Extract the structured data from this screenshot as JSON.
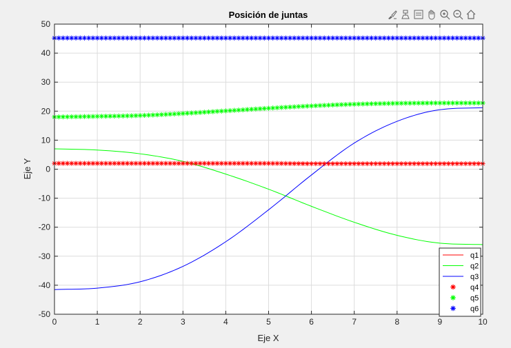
{
  "toolbar": {
    "icons": [
      "brush-icon",
      "data-tips-icon",
      "restore-view-icon",
      "pan-icon",
      "zoom-in-icon",
      "zoom-out-icon",
      "home-icon"
    ]
  },
  "colors": {
    "q1": "#ff0000",
    "q2": "#00ff00",
    "q3": "#0000ff",
    "q4": "#ff0000",
    "q5": "#00ff00",
    "q6": "#0000ff",
    "axes_bg": "#ffffff",
    "figure_bg": "#f0f0f0",
    "grid": "#dcdcdc"
  },
  "chart_data": {
    "type": "line",
    "title": "Posición de juntas",
    "xlabel": "Eje X",
    "ylabel": "Eje Y",
    "xlim": [
      0,
      10
    ],
    "ylim": [
      -50,
      50
    ],
    "xticks": [
      0,
      1,
      2,
      3,
      4,
      5,
      6,
      7,
      8,
      9,
      10
    ],
    "yticks": [
      -50,
      -40,
      -30,
      -20,
      -10,
      0,
      10,
      20,
      30,
      40,
      50
    ],
    "grid": true,
    "legend_position": "bottom-right",
    "series": [
      {
        "name": "q1",
        "style": "line",
        "color": "#ff0000",
        "x": [
          0,
          1,
          2,
          3,
          4,
          5,
          6,
          7,
          8,
          9,
          10
        ],
        "y": [
          2.0,
          2.0,
          2.0,
          2.0,
          2.0,
          2.0,
          2.0,
          2.0,
          2.0,
          2.0,
          2.0
        ]
      },
      {
        "name": "q2",
        "style": "line",
        "color": "#00ff00",
        "x": [
          0,
          1,
          2,
          3,
          4,
          5,
          6,
          7,
          8,
          9,
          10
        ],
        "y": [
          7.0,
          6.6,
          5.3,
          2.7,
          -1.7,
          -6.9,
          -12.8,
          -18.3,
          -22.8,
          -25.5,
          -26.0
        ]
      },
      {
        "name": "q3",
        "style": "line",
        "color": "#0000ff",
        "x": [
          0,
          1,
          2,
          3,
          4,
          5,
          6,
          7,
          8,
          9,
          10
        ],
        "y": [
          -41.5,
          -41.0,
          -38.8,
          -33.5,
          -25.0,
          -14.0,
          -2.0,
          9.0,
          16.5,
          20.5,
          21.2
        ]
      },
      {
        "name": "q4",
        "style": "marker",
        "color": "#ff0000",
        "x": [
          0,
          1,
          2,
          3,
          4,
          5,
          6,
          7,
          8,
          9,
          10
        ],
        "y": [
          2.0,
          2.0,
          2.0,
          2.0,
          2.0,
          2.0,
          1.9,
          1.9,
          1.9,
          1.9,
          1.9
        ]
      },
      {
        "name": "q5",
        "style": "marker",
        "color": "#00ff00",
        "x": [
          0,
          1,
          2,
          3,
          4,
          5,
          6,
          7,
          8,
          9,
          10
        ],
        "y": [
          18.0,
          18.2,
          18.5,
          19.2,
          20.1,
          21.0,
          21.8,
          22.4,
          22.7,
          22.8,
          22.8
        ]
      },
      {
        "name": "q6",
        "style": "marker",
        "color": "#0000ff",
        "x": [
          0,
          1,
          2,
          3,
          4,
          5,
          6,
          7,
          8,
          9,
          10
        ],
        "y": [
          45.2,
          45.2,
          45.2,
          45.2,
          45.2,
          45.2,
          45.2,
          45.2,
          45.2,
          45.2,
          45.2
        ]
      }
    ]
  }
}
